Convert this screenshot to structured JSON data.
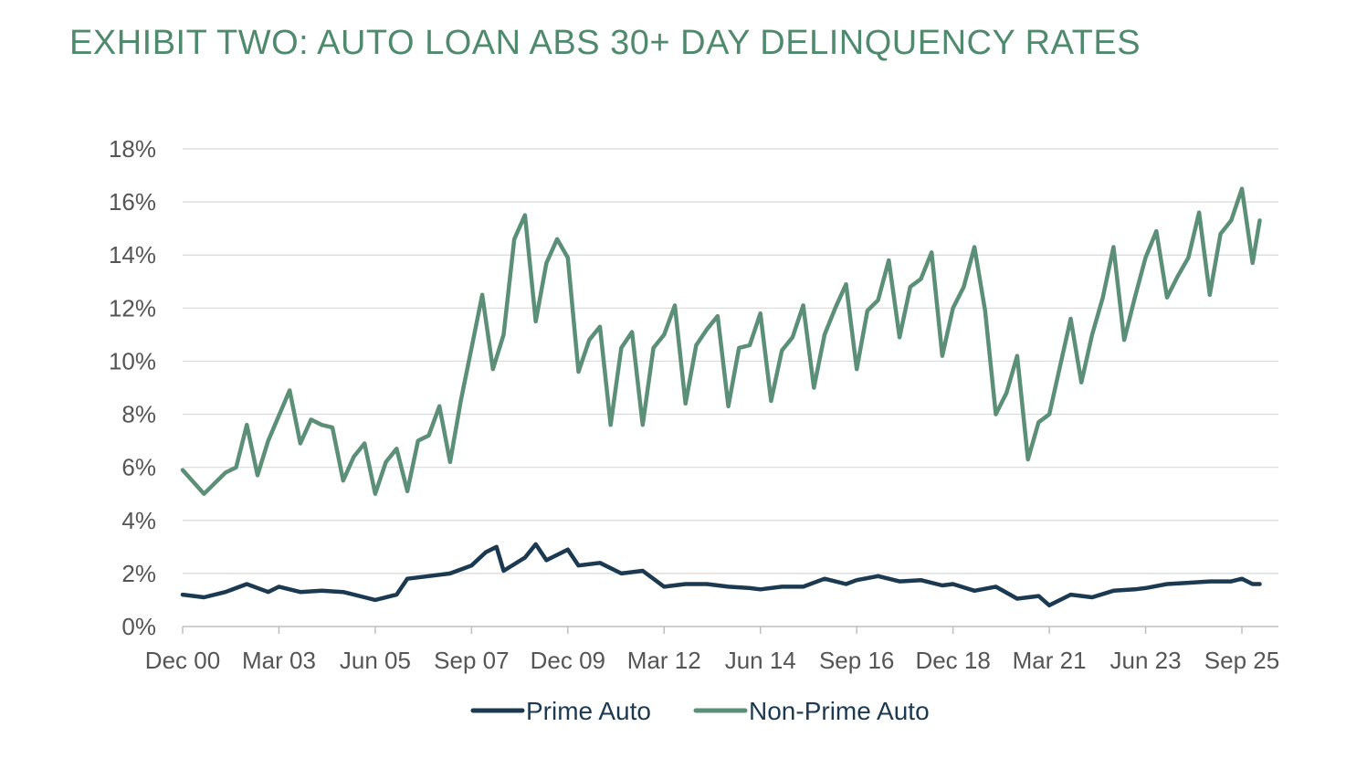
{
  "chart_data": {
    "type": "line",
    "title": "EXHIBIT TWO: AUTO LOAN ABS 30+ DAY DELINQUENCY RATES",
    "xlabel": "",
    "ylabel": "",
    "ylim": [
      0,
      18
    ],
    "yticks": [
      "0%",
      "2%",
      "4%",
      "6%",
      "8%",
      "10%",
      "12%",
      "14%",
      "16%",
      "18%"
    ],
    "xticks": [
      "Dec 00",
      "Mar 03",
      "Jun 05",
      "Sep 07",
      "Dec 09",
      "Mar 12",
      "Jun 14",
      "Sep 16",
      "Dec 18",
      "Mar 21",
      "Jun 23",
      "Sep 25"
    ],
    "grid": true,
    "legend": "bottom-center",
    "series": [
      {
        "name": "Prime Auto",
        "color": "#1b3a52",
        "points": [
          [
            "Dec 00",
            1.2
          ],
          [
            "Jun 01",
            1.1
          ],
          [
            "Dec 01",
            1.3
          ],
          [
            "Jun 02",
            1.6
          ],
          [
            "Dec 02",
            1.3
          ],
          [
            "Mar 03",
            1.5
          ],
          [
            "Sep 03",
            1.3
          ],
          [
            "Mar 04",
            1.35
          ],
          [
            "Sep 04",
            1.3
          ],
          [
            "Mar 05",
            1.1
          ],
          [
            "Jun 05",
            1.0
          ],
          [
            "Dec 05",
            1.2
          ],
          [
            "Mar 06",
            1.8
          ],
          [
            "Sep 06",
            1.9
          ],
          [
            "Mar 07",
            2.0
          ],
          [
            "Sep 07",
            2.3
          ],
          [
            "Jan 08",
            2.8
          ],
          [
            "Apr 08",
            3.0
          ],
          [
            "Jun 08",
            2.1
          ],
          [
            "Dec 08",
            2.6
          ],
          [
            "Mar 09",
            3.1
          ],
          [
            "Jun 09",
            2.5
          ],
          [
            "Dec 09",
            2.9
          ],
          [
            "Mar 10",
            2.3
          ],
          [
            "Sep 10",
            2.4
          ],
          [
            "Mar 11",
            2.0
          ],
          [
            "Sep 11",
            2.1
          ],
          [
            "Mar 12",
            1.5
          ],
          [
            "Sep 12",
            1.6
          ],
          [
            "Mar 13",
            1.6
          ],
          [
            "Sep 13",
            1.5
          ],
          [
            "Mar 14",
            1.45
          ],
          [
            "Jun 14",
            1.4
          ],
          [
            "Dec 14",
            1.5
          ],
          [
            "Jun 15",
            1.5
          ],
          [
            "Dec 15",
            1.8
          ],
          [
            "Jun 16",
            1.6
          ],
          [
            "Sep 16",
            1.75
          ],
          [
            "Mar 17",
            1.9
          ],
          [
            "Sep 17",
            1.7
          ],
          [
            "Mar 18",
            1.75
          ],
          [
            "Sep 18",
            1.55
          ],
          [
            "Dec 18",
            1.6
          ],
          [
            "Jun 19",
            1.35
          ],
          [
            "Dec 19",
            1.5
          ],
          [
            "Jun 20",
            1.05
          ],
          [
            "Dec 20",
            1.15
          ],
          [
            "Mar 21",
            0.8
          ],
          [
            "Sep 21",
            1.2
          ],
          [
            "Mar 22",
            1.1
          ],
          [
            "Sep 22",
            1.35
          ],
          [
            "Mar 23",
            1.4
          ],
          [
            "Jun 23",
            1.45
          ],
          [
            "Dec 23",
            1.6
          ],
          [
            "Jun 24",
            1.65
          ],
          [
            "Dec 24",
            1.7
          ],
          [
            "Jun 25",
            1.7
          ],
          [
            "Sep 25",
            1.8
          ],
          [
            "Dec 25",
            1.6
          ],
          [
            "Feb 26",
            1.6
          ]
        ]
      },
      {
        "name": "Non-Prime Auto",
        "color": "#5b8f78",
        "points": [
          [
            "Dec 00",
            5.9
          ],
          [
            "Jun 01",
            5.0
          ],
          [
            "Dec 01",
            5.8
          ],
          [
            "Mar 02",
            6.0
          ],
          [
            "Jun 02",
            7.6
          ],
          [
            "Sep 02",
            5.7
          ],
          [
            "Dec 02",
            7.0
          ],
          [
            "Jun 03",
            8.9
          ],
          [
            "Sep 03",
            6.9
          ],
          [
            "Dec 03",
            7.8
          ],
          [
            "Mar 04",
            7.6
          ],
          [
            "Jun 04",
            7.5
          ],
          [
            "Sep 04",
            5.5
          ],
          [
            "Dec 04",
            6.4
          ],
          [
            "Mar 05",
            6.9
          ],
          [
            "Jun 05",
            5.0
          ],
          [
            "Sep 05",
            6.2
          ],
          [
            "Dec 05",
            6.7
          ],
          [
            "Mar 06",
            5.1
          ],
          [
            "Jun 06",
            7.0
          ],
          [
            "Sep 06",
            7.2
          ],
          [
            "Dec 06",
            8.3
          ],
          [
            "Mar 07",
            6.2
          ],
          [
            "Jun 07",
            8.5
          ],
          [
            "Sep 07",
            10.5
          ],
          [
            "Dec 07",
            12.5
          ],
          [
            "Mar 08",
            9.7
          ],
          [
            "Jun 08",
            11.0
          ],
          [
            "Sep 08",
            14.6
          ],
          [
            "Dec 08",
            15.5
          ],
          [
            "Mar 09",
            11.5
          ],
          [
            "Jun 09",
            13.7
          ],
          [
            "Sep 09",
            14.6
          ],
          [
            "Dec 09",
            13.9
          ],
          [
            "Mar 10",
            9.6
          ],
          [
            "Jun 10",
            10.8
          ],
          [
            "Sep 10",
            11.3
          ],
          [
            "Dec 10",
            7.6
          ],
          [
            "Mar 11",
            10.5
          ],
          [
            "Jun 11",
            11.1
          ],
          [
            "Sep 11",
            7.6
          ],
          [
            "Dec 11",
            10.5
          ],
          [
            "Mar 12",
            11.0
          ],
          [
            "Jun 12",
            12.1
          ],
          [
            "Sep 12",
            8.4
          ],
          [
            "Dec 12",
            10.6
          ],
          [
            "Mar 13",
            11.2
          ],
          [
            "Jun 13",
            11.7
          ],
          [
            "Sep 13",
            8.3
          ],
          [
            "Dec 13",
            10.5
          ],
          [
            "Mar 14",
            10.6
          ],
          [
            "Jun 14",
            11.8
          ],
          [
            "Sep 14",
            8.5
          ],
          [
            "Dec 14",
            10.4
          ],
          [
            "Mar 15",
            10.9
          ],
          [
            "Jun 15",
            12.1
          ],
          [
            "Sep 15",
            9.0
          ],
          [
            "Dec 15",
            11.0
          ],
          [
            "Mar 16",
            12.0
          ],
          [
            "Jun 16",
            12.9
          ],
          [
            "Sep 16",
            9.7
          ],
          [
            "Dec 16",
            11.9
          ],
          [
            "Mar 17",
            12.3
          ],
          [
            "Jun 17",
            13.8
          ],
          [
            "Sep 17",
            10.9
          ],
          [
            "Dec 17",
            12.8
          ],
          [
            "Mar 18",
            13.1
          ],
          [
            "Jun 18",
            14.1
          ],
          [
            "Sep 18",
            10.2
          ],
          [
            "Dec 18",
            12.0
          ],
          [
            "Mar 19",
            12.8
          ],
          [
            "Jun 19",
            14.3
          ],
          [
            "Sep 19",
            11.9
          ],
          [
            "Dec 19",
            8.0
          ],
          [
            "Mar 20",
            8.8
          ],
          [
            "Jun 20",
            10.2
          ],
          [
            "Sep 20",
            6.3
          ],
          [
            "Dec 20",
            7.7
          ],
          [
            "Mar 21",
            8.0
          ],
          [
            "Jun 21",
            9.8
          ],
          [
            "Sep 21",
            11.6
          ],
          [
            "Dec 21",
            9.2
          ],
          [
            "Mar 22",
            11.0
          ],
          [
            "Jun 22",
            12.4
          ],
          [
            "Sep 22",
            14.3
          ],
          [
            "Dec 22",
            10.8
          ],
          [
            "Mar 23",
            12.4
          ],
          [
            "Jun 23",
            13.9
          ],
          [
            "Sep 23",
            14.9
          ],
          [
            "Dec 23",
            12.4
          ],
          [
            "Mar 24",
            13.2
          ],
          [
            "Jun 24",
            13.9
          ],
          [
            "Sep 24",
            15.6
          ],
          [
            "Dec 24",
            12.5
          ],
          [
            "Mar 25",
            14.8
          ],
          [
            "Jun 25",
            15.3
          ],
          [
            "Sep 25",
            16.5
          ],
          [
            "Dec 25",
            13.7
          ],
          [
            "Feb 26",
            15.3
          ]
        ]
      }
    ]
  }
}
